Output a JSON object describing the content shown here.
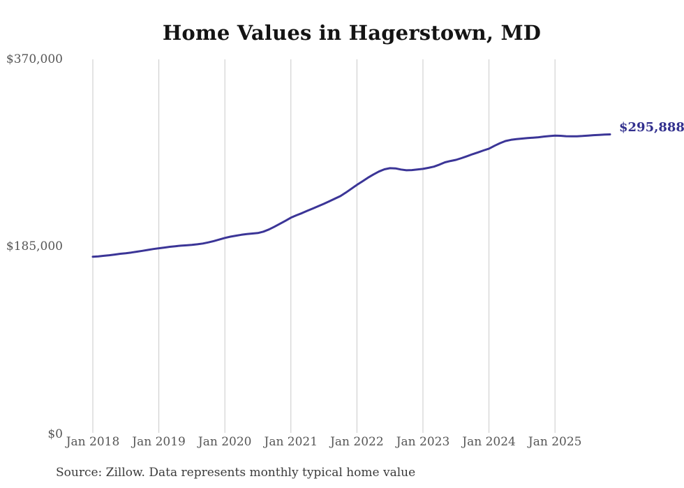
{
  "title": "Home Values in Hagerstown, MD",
  "annotation": {
    "latest_value_label": "$295,888"
  },
  "source_note": "Source: Zillow. Data represents monthly typical home value",
  "colors": {
    "line": "#3b3597",
    "annotation_text": "#32308e",
    "gridline": "#c9c9c9",
    "axis_label_text": "#565656",
    "title_text": "#141414",
    "source_text": "#3a3a3a",
    "background": "#ffffff"
  },
  "y_axis": {
    "ticks": [
      {
        "label": "$370,000",
        "value": 370000
      },
      {
        "label": "$185,000",
        "value": 185000
      },
      {
        "label": "$0",
        "value": 0
      }
    ]
  },
  "x_axis": {
    "ticks": [
      "Jan 2018",
      "Jan 2019",
      "Jan 2020",
      "Jan 2021",
      "Jan 2022",
      "Jan 2023",
      "Jan 2024",
      "Jan 2025"
    ],
    "months_per_tick": 12
  },
  "chart_data": {
    "type": "line",
    "title": "Home Values in Hagerstown, MD",
    "series_name": "Typical home value",
    "x_start": "2018-01",
    "x_end": "2025-11",
    "x_interval": "monthly",
    "x_tick_labels": [
      "Jan 2018",
      "Jan 2019",
      "Jan 2020",
      "Jan 2021",
      "Jan 2022",
      "Jan 2023",
      "Jan 2024",
      "Jan 2025"
    ],
    "xlabel": "",
    "ylabel": "",
    "ylim": [
      0,
      370000
    ],
    "y_tick_values": [
      0,
      185000,
      370000
    ],
    "grid": "vertical-only",
    "legend": "none",
    "latest_value": 295888,
    "values": [
      175000,
      175400,
      175900,
      176500,
      177200,
      177900,
      178500,
      179200,
      180000,
      180800,
      181700,
      182600,
      183400,
      184100,
      184800,
      185400,
      185900,
      186300,
      186700,
      187300,
      188100,
      189200,
      190500,
      192000,
      193600,
      194800,
      195800,
      196700,
      197400,
      197900,
      198400,
      199800,
      201900,
      204600,
      207500,
      210500,
      213600,
      215900,
      218100,
      220400,
      222700,
      225000,
      227300,
      229800,
      232400,
      234900,
      238400,
      242200,
      246000,
      249500,
      253000,
      256300,
      259200,
      261400,
      262500,
      262300,
      261200,
      260400,
      260600,
      261200,
      261800,
      262800,
      264000,
      266000,
      268300,
      269600,
      270700,
      272400,
      274300,
      276300,
      278100,
      280000,
      281800,
      284600,
      287200,
      289300,
      290500,
      291200,
      291700,
      292200,
      292600,
      293000,
      293700,
      294200,
      294600,
      294500,
      294100,
      293900,
      294000,
      294300,
      294700,
      295100,
      295400,
      295650,
      295888
    ]
  }
}
